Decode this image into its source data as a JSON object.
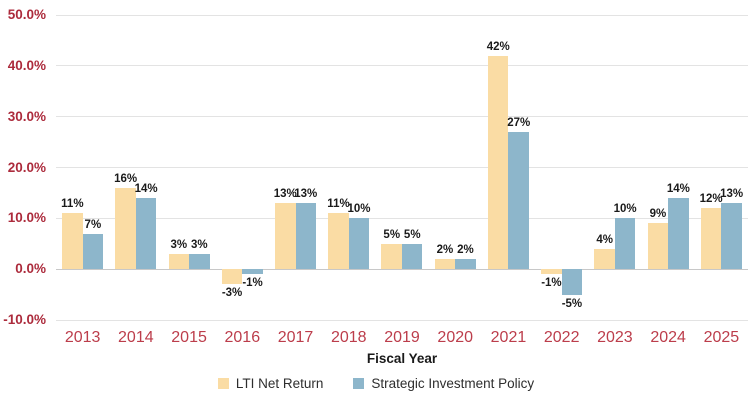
{
  "chart_data": {
    "type": "bar",
    "title": "",
    "xlabel": "Fiscal Year",
    "ylabel": "",
    "ylim": [
      -10,
      50
    ],
    "grid": true,
    "legend_position": "bottom",
    "yticks": [
      {
        "value": 50,
        "label": "50.0%"
      },
      {
        "value": 40,
        "label": "40.0%"
      },
      {
        "value": 30,
        "label": "30.0%"
      },
      {
        "value": 20,
        "label": "20.0%"
      },
      {
        "value": 10,
        "label": "10.0%"
      },
      {
        "value": 0,
        "label": "0.0%"
      },
      {
        "value": -10,
        "label": "-10.0%"
      }
    ],
    "categories": [
      "2013",
      "2014",
      "2015",
      "2016",
      "2017",
      "2018",
      "2019",
      "2020",
      "2021",
      "2022",
      "2023",
      "2024",
      "2025"
    ],
    "series": [
      {
        "name": "LTI Net Return",
        "color": "#fadca4",
        "values": [
          11,
          16,
          3,
          -3,
          13,
          11,
          5,
          2,
          42,
          -1,
          4,
          9,
          12
        ],
        "labels": [
          "11%",
          "16%",
          "3%",
          "-3%",
          "13%",
          "11%",
          "5%",
          "2%",
          "42%",
          "-1%",
          "4%",
          "9%",
          "12%"
        ]
      },
      {
        "name": "Strategic Investment Policy",
        "color": "#8db6cb",
        "values": [
          7,
          14,
          3,
          -1,
          13,
          10,
          5,
          2,
          27,
          -5,
          10,
          14,
          13
        ],
        "labels": [
          "7%",
          "14%",
          "3%",
          "-1%",
          "13%",
          "10%",
          "5%",
          "2%",
          "27%",
          "-5%",
          "10%",
          "14%",
          "13%"
        ]
      }
    ]
  },
  "colors": {
    "y_axis_label": "#ac2b3c",
    "x_axis_label": "#bc3d4b",
    "gridline": "#e3e3e3",
    "zero_line": "#c8c8c8",
    "data_label": "#1a1a1a"
  }
}
